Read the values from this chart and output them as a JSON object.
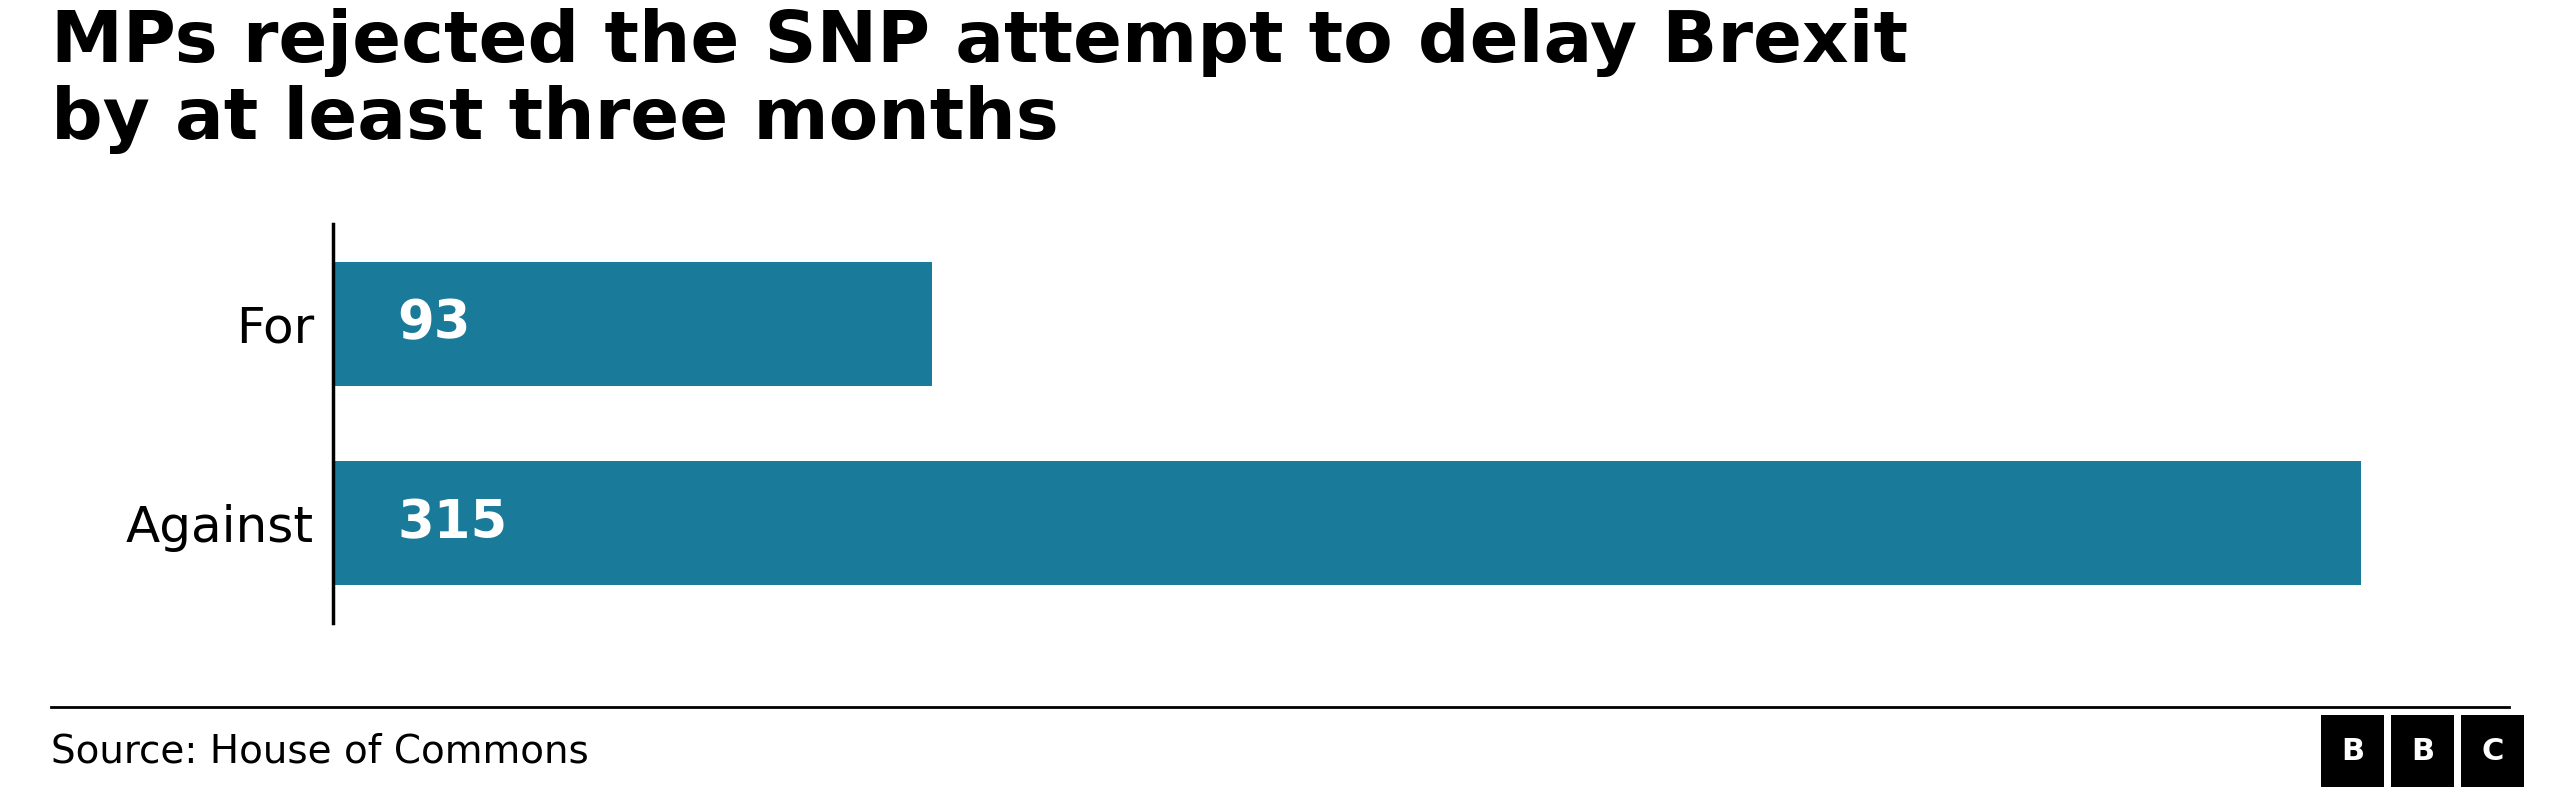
{
  "title_line1": "MPs rejected the SNP attempt to delay Brexit",
  "title_line2": "by at least three months",
  "categories": [
    "Against",
    "For"
  ],
  "values": [
    315,
    93
  ],
  "bar_color": "#1a7a9a",
  "label_color": "#ffffff",
  "bg_color": "#ffffff",
  "source_text": "Source: House of Commons",
  "title_fontsize": 52,
  "label_fontsize": 38,
  "tick_fontsize": 36,
  "source_fontsize": 28,
  "xlim": [
    0,
    340
  ]
}
